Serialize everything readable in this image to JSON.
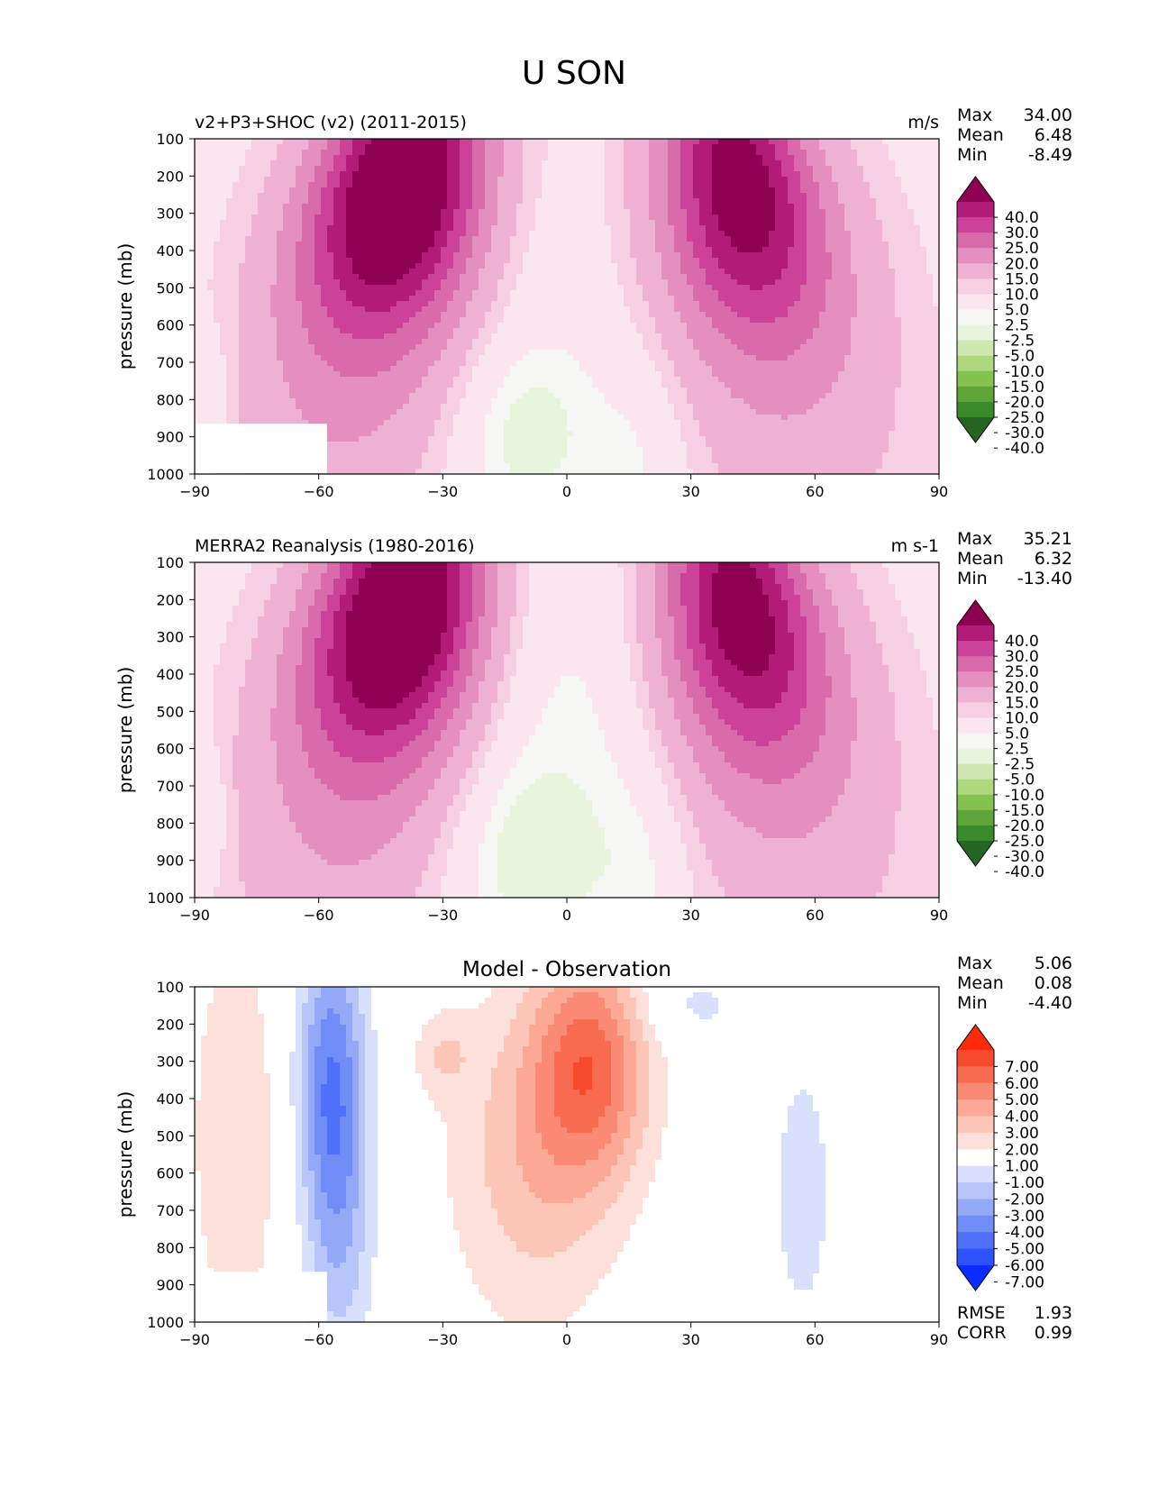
{
  "title": "U SON",
  "y_axis_label": "pressure (mb)",
  "x_ticks": [
    "−90",
    "−60",
    "−30",
    "0",
    "30",
    "60",
    "90"
  ],
  "y_ticks": [
    "100",
    "200",
    "300",
    "400",
    "500",
    "600",
    "700",
    "800",
    "900",
    "1000"
  ],
  "stat_labels": {
    "max": "Max",
    "mean": "Mean",
    "min": "Min",
    "rmse": "RMSE",
    "corr": "CORR"
  },
  "colors": {
    "u_levels": [
      "#246523",
      "#3a8a2c",
      "#5da538",
      "#86c250",
      "#aed87e",
      "#cfe8b1",
      "#e8f4dc",
      "#f6f6f4",
      "#fbe6f0",
      "#f6cfe3",
      "#eeb1d3",
      "#e48fc0",
      "#d96aac",
      "#cc4298",
      "#b31b78",
      "#8e0152"
    ],
    "diff_levels": [
      "#0a2cff",
      "#2e52ff",
      "#4e70fb",
      "#6f8cf7",
      "#93a9f7",
      "#b7c5fa",
      "#d9e0fd",
      "#ffffff",
      "#fde0da",
      "#fcc5b8",
      "#fba895",
      "#fa8a73",
      "#f96b50",
      "#f64a2c",
      "#ff2a0a"
    ]
  },
  "chart_data": [
    {
      "type": "contourf",
      "panel": "test",
      "subtitle": "v2+P3+SHOC (v2) (2011-2015)",
      "units": "m/s",
      "xlabel": "",
      "ylabel": "pressure (mb)",
      "xlim": [
        -90,
        90
      ],
      "ylim": [
        1000,
        100
      ],
      "stats": {
        "max": "34.00",
        "mean": "6.48",
        "min": "-8.49"
      },
      "colorbar_ticks": [
        "40.0",
        "30.0",
        "25.0",
        "20.0",
        "15.0",
        "10.0",
        "5.0",
        "2.5",
        "-2.5",
        "-5.0",
        "-10.0",
        "-15.0",
        "-20.0",
        "-25.0",
        "-30.0",
        "-40.0"
      ],
      "features": [
        {
          "name": "sh-jet",
          "lat": -38,
          "pressure": 220,
          "peak": 34
        },
        {
          "name": "nh-jet",
          "lat": 42,
          "pressure": 210,
          "peak": 27
        },
        {
          "name": "tropical-easterlies",
          "lat": -10,
          "pressure": 900,
          "peak": -7
        }
      ]
    },
    {
      "type": "contourf",
      "panel": "reference",
      "subtitle": "MERRA2 Reanalysis (1980-2016)",
      "units": "m s-1",
      "xlabel": "",
      "ylabel": "pressure (mb)",
      "xlim": [
        -90,
        90
      ],
      "ylim": [
        1000,
        100
      ],
      "stats": {
        "max": "35.21",
        "mean": "6.32",
        "min": "-13.40"
      },
      "colorbar_ticks": [
        "40.0",
        "30.0",
        "25.0",
        "20.0",
        "15.0",
        "10.0",
        "5.0",
        "2.5",
        "-2.5",
        "-5.0",
        "-10.0",
        "-15.0",
        "-20.0",
        "-25.0",
        "-30.0",
        "-40.0"
      ],
      "features": [
        {
          "name": "sh-jet",
          "lat": -38,
          "pressure": 210,
          "peak": 35
        },
        {
          "name": "nh-jet",
          "lat": 40,
          "pressure": 200,
          "peak": 28
        },
        {
          "name": "tropical-easterlies",
          "lat": -12,
          "pressure": 900,
          "peak": -8
        }
      ]
    },
    {
      "type": "contourf",
      "panel": "difference",
      "subtitle": "Model - Observation",
      "units": "",
      "xlabel": "",
      "ylabel": "pressure (mb)",
      "xlim": [
        -90,
        90
      ],
      "ylim": [
        1000,
        100
      ],
      "stats": {
        "max": "5.06",
        "mean": "0.08",
        "min": "-4.40",
        "rmse": "1.93",
        "corr": "0.99"
      },
      "colorbar_ticks": [
        "7.00",
        "6.00",
        "5.00",
        "4.00",
        "3.00",
        "2.00",
        "1.00",
        "-1.00",
        "-2.00",
        "-3.00",
        "-4.00",
        "-5.00",
        "-6.00",
        "-7.00"
      ],
      "features": [
        {
          "name": "equatorial-positive",
          "lat": 5,
          "pressure": 300,
          "peak": 5
        },
        {
          "name": "sh-negative",
          "lat": -57,
          "pressure": 300,
          "peak": -4.4
        },
        {
          "name": "nh-negative",
          "lat": 57,
          "pressure": 650,
          "peak": -1.5
        }
      ]
    }
  ]
}
